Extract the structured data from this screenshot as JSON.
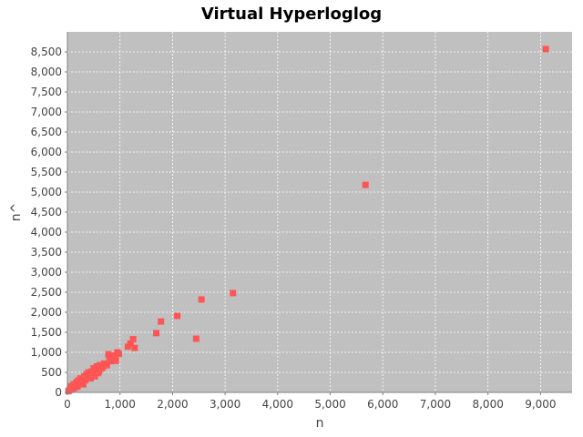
{
  "chart_data": {
    "type": "scatter",
    "title": "Virtual Hyperloglog",
    "xlabel": "n",
    "ylabel": "n^",
    "xlim": [
      0,
      9600
    ],
    "ylim": [
      0,
      9000
    ],
    "x_ticks": [
      0,
      1000,
      2000,
      3000,
      4000,
      5000,
      6000,
      7000,
      8000,
      9000
    ],
    "y_ticks": [
      0,
      500,
      1000,
      1500,
      2000,
      2500,
      3000,
      3500,
      4000,
      4500,
      5000,
      5500,
      6000,
      6500,
      7000,
      7500,
      8000,
      8500
    ],
    "x_tick_labels": [
      "0",
      "1,000",
      "2,000",
      "3,000",
      "4,000",
      "5,000",
      "6,000",
      "7,000",
      "8,000",
      "9,000"
    ],
    "y_tick_labels": [
      "0",
      "500",
      "1,000",
      "1,500",
      "2,000",
      "2,500",
      "3,000",
      "3,500",
      "4,000",
      "4,500",
      "5,000",
      "5,500",
      "6,000",
      "6,500",
      "7,000",
      "7,500",
      "8,000",
      "8,500"
    ],
    "grid": true,
    "colors": {
      "plot_background": "#c0c0c0",
      "grid": "#ffffff",
      "marker": "#ff5555"
    },
    "points": [
      [
        20,
        30
      ],
      [
        40,
        60
      ],
      [
        60,
        100
      ],
      [
        70,
        150
      ],
      [
        90,
        80
      ],
      [
        100,
        120
      ],
      [
        120,
        200
      ],
      [
        130,
        110
      ],
      [
        150,
        180
      ],
      [
        170,
        250
      ],
      [
        190,
        140
      ],
      [
        210,
        300
      ],
      [
        230,
        210
      ],
      [
        250,
        350
      ],
      [
        270,
        260
      ],
      [
        290,
        320
      ],
      [
        300,
        200
      ],
      [
        320,
        400
      ],
      [
        340,
        300
      ],
      [
        360,
        450
      ],
      [
        380,
        380
      ],
      [
        400,
        500
      ],
      [
        420,
        420
      ],
      [
        440,
        350
      ],
      [
        460,
        520
      ],
      [
        480,
        460
      ],
      [
        500,
        600
      ],
      [
        520,
        400
      ],
      [
        540,
        550
      ],
      [
        560,
        650
      ],
      [
        580,
        480
      ],
      [
        600,
        520
      ],
      [
        620,
        680
      ],
      [
        650,
        600
      ],
      [
        680,
        640
      ],
      [
        700,
        720
      ],
      [
        750,
        680
      ],
      [
        780,
        950
      ],
      [
        800,
        850
      ],
      [
        830,
        780
      ],
      [
        860,
        800
      ],
      [
        900,
        920
      ],
      [
        920,
        790
      ],
      [
        950,
        1000
      ],
      [
        980,
        960
      ],
      [
        1150,
        1140
      ],
      [
        1200,
        1220
      ],
      [
        1250,
        1330
      ],
      [
        1280,
        1110
      ],
      [
        1690,
        1480
      ],
      [
        1780,
        1770
      ],
      [
        2090,
        1910
      ],
      [
        2450,
        1340
      ],
      [
        2550,
        2320
      ],
      [
        3150,
        2480
      ],
      [
        5670,
        5180
      ],
      [
        9100,
        8570
      ]
    ]
  }
}
